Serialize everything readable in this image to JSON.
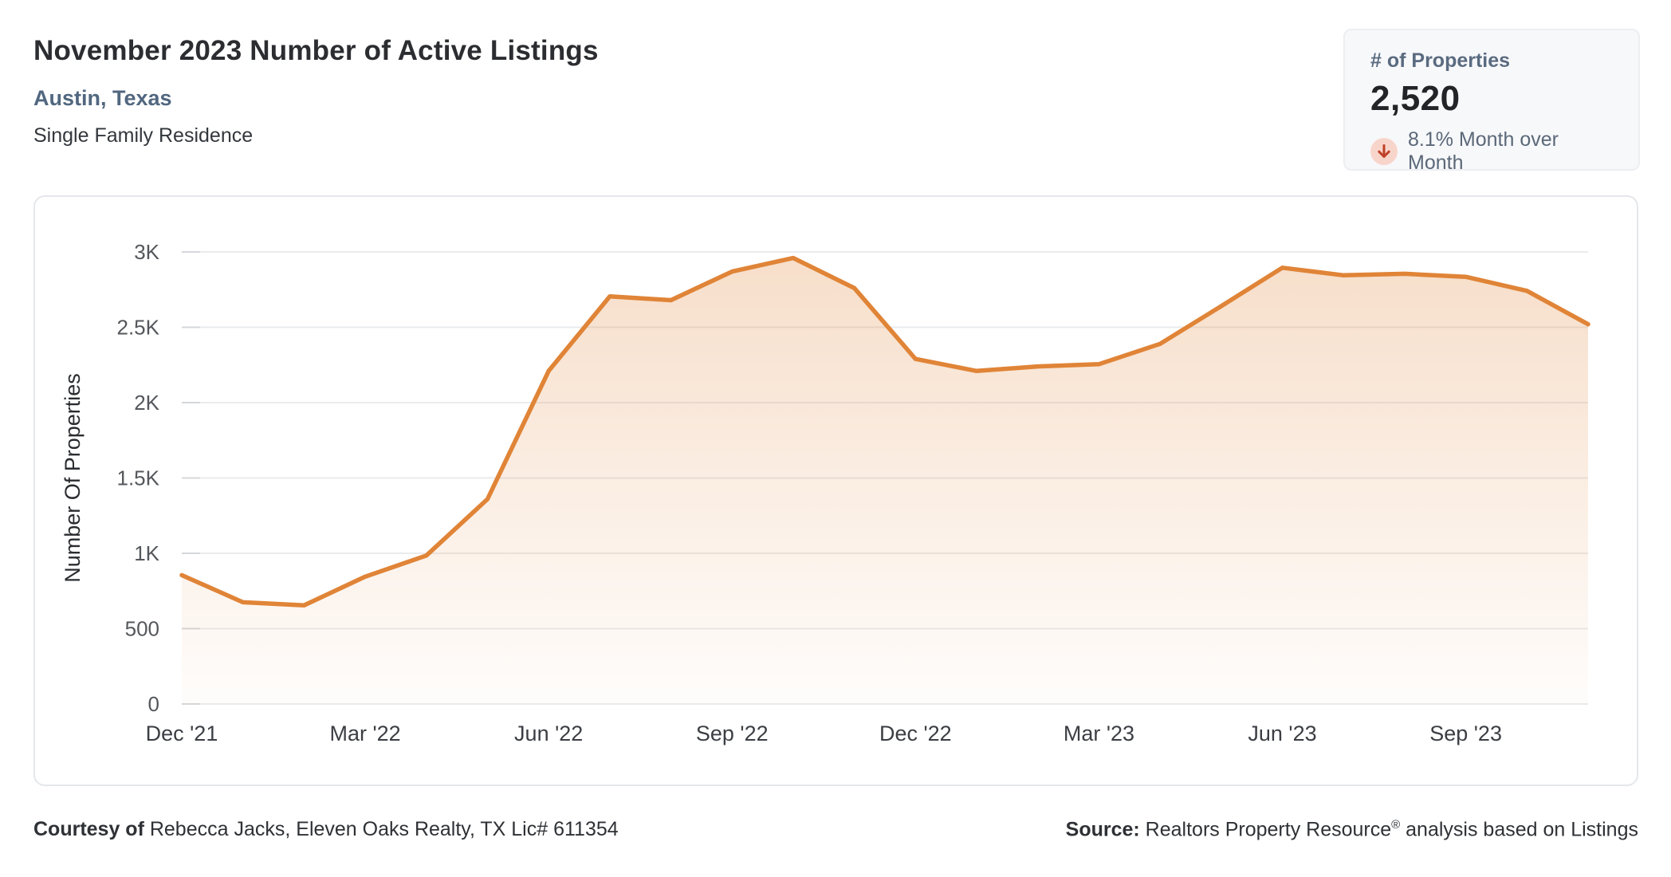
{
  "header": {
    "title": "November 2023 Number of Active Listings",
    "location": "Austin, Texas",
    "property_type": "Single Family Residence"
  },
  "stat_card": {
    "label": "# of Properties",
    "value": "2,520",
    "change_text": "8.1% Month over Month",
    "change_direction": "down",
    "icon": "arrow-down-icon",
    "icon_bg_color": "#f8d5cb",
    "icon_arrow_color": "#be4128"
  },
  "chart_data": {
    "type": "area",
    "title": "",
    "xlabel": "",
    "ylabel": "Number Of Properties",
    "x": [
      "Dec '21",
      "Jan '22",
      "Feb '22",
      "Mar '22",
      "Apr '22",
      "May '22",
      "Jun '22",
      "Jul '22",
      "Aug '22",
      "Sep '22",
      "Oct '22",
      "Nov '22",
      "Dec '22",
      "Jan '23",
      "Feb '23",
      "Mar '23",
      "Apr '23",
      "May '23",
      "Jun '23",
      "Jul '23",
      "Aug '23",
      "Sep '23",
      "Oct '23",
      "Nov '23"
    ],
    "values": [
      855,
      675,
      655,
      845,
      985,
      1360,
      2210,
      2705,
      2680,
      2870,
      2960,
      2760,
      2290,
      2210,
      2240,
      2255,
      2390,
      2640,
      2895,
      2845,
      2855,
      2835,
      2742,
      2520
    ],
    "series_name": "Number of Active Listings",
    "x_tick_labels": [
      "Dec '21",
      "Mar '22",
      "Jun '22",
      "Sep '22",
      "Dec '22",
      "Mar '23",
      "Jun '23",
      "Sep '23"
    ],
    "x_tick_indices": [
      0,
      3,
      6,
      9,
      12,
      15,
      18,
      21
    ],
    "y_tick_labels": [
      "3K",
      "2.5K",
      "2K",
      "1.5K",
      "1K",
      "500",
      "0"
    ],
    "y_tick_values": [
      3000,
      2500,
      2000,
      1500,
      1000,
      500,
      0
    ],
    "ylim": [
      0,
      3000
    ],
    "grid": true,
    "legend": "none",
    "line_color": "#e08437",
    "fill_color": "#e08437",
    "fill_opacity_top": 0.27,
    "fill_opacity_bottom": 0.02,
    "gridline_color": "#eaebed",
    "tick_color": "#d5d7da",
    "y_label_color": "#54575b",
    "x_label_color": "#3b3e43",
    "axis_title_color": "#2a2c2f"
  },
  "footer": {
    "courtesy_label": "Courtesy of",
    "courtesy_text": " Rebecca Jacks, Eleven Oaks Realty, TX Lic# 611354",
    "source_label": "Source:",
    "source_text_pre": " Realtors Property Resource",
    "source_reg_mark": "®",
    "source_text_post": " analysis based on Listings"
  }
}
